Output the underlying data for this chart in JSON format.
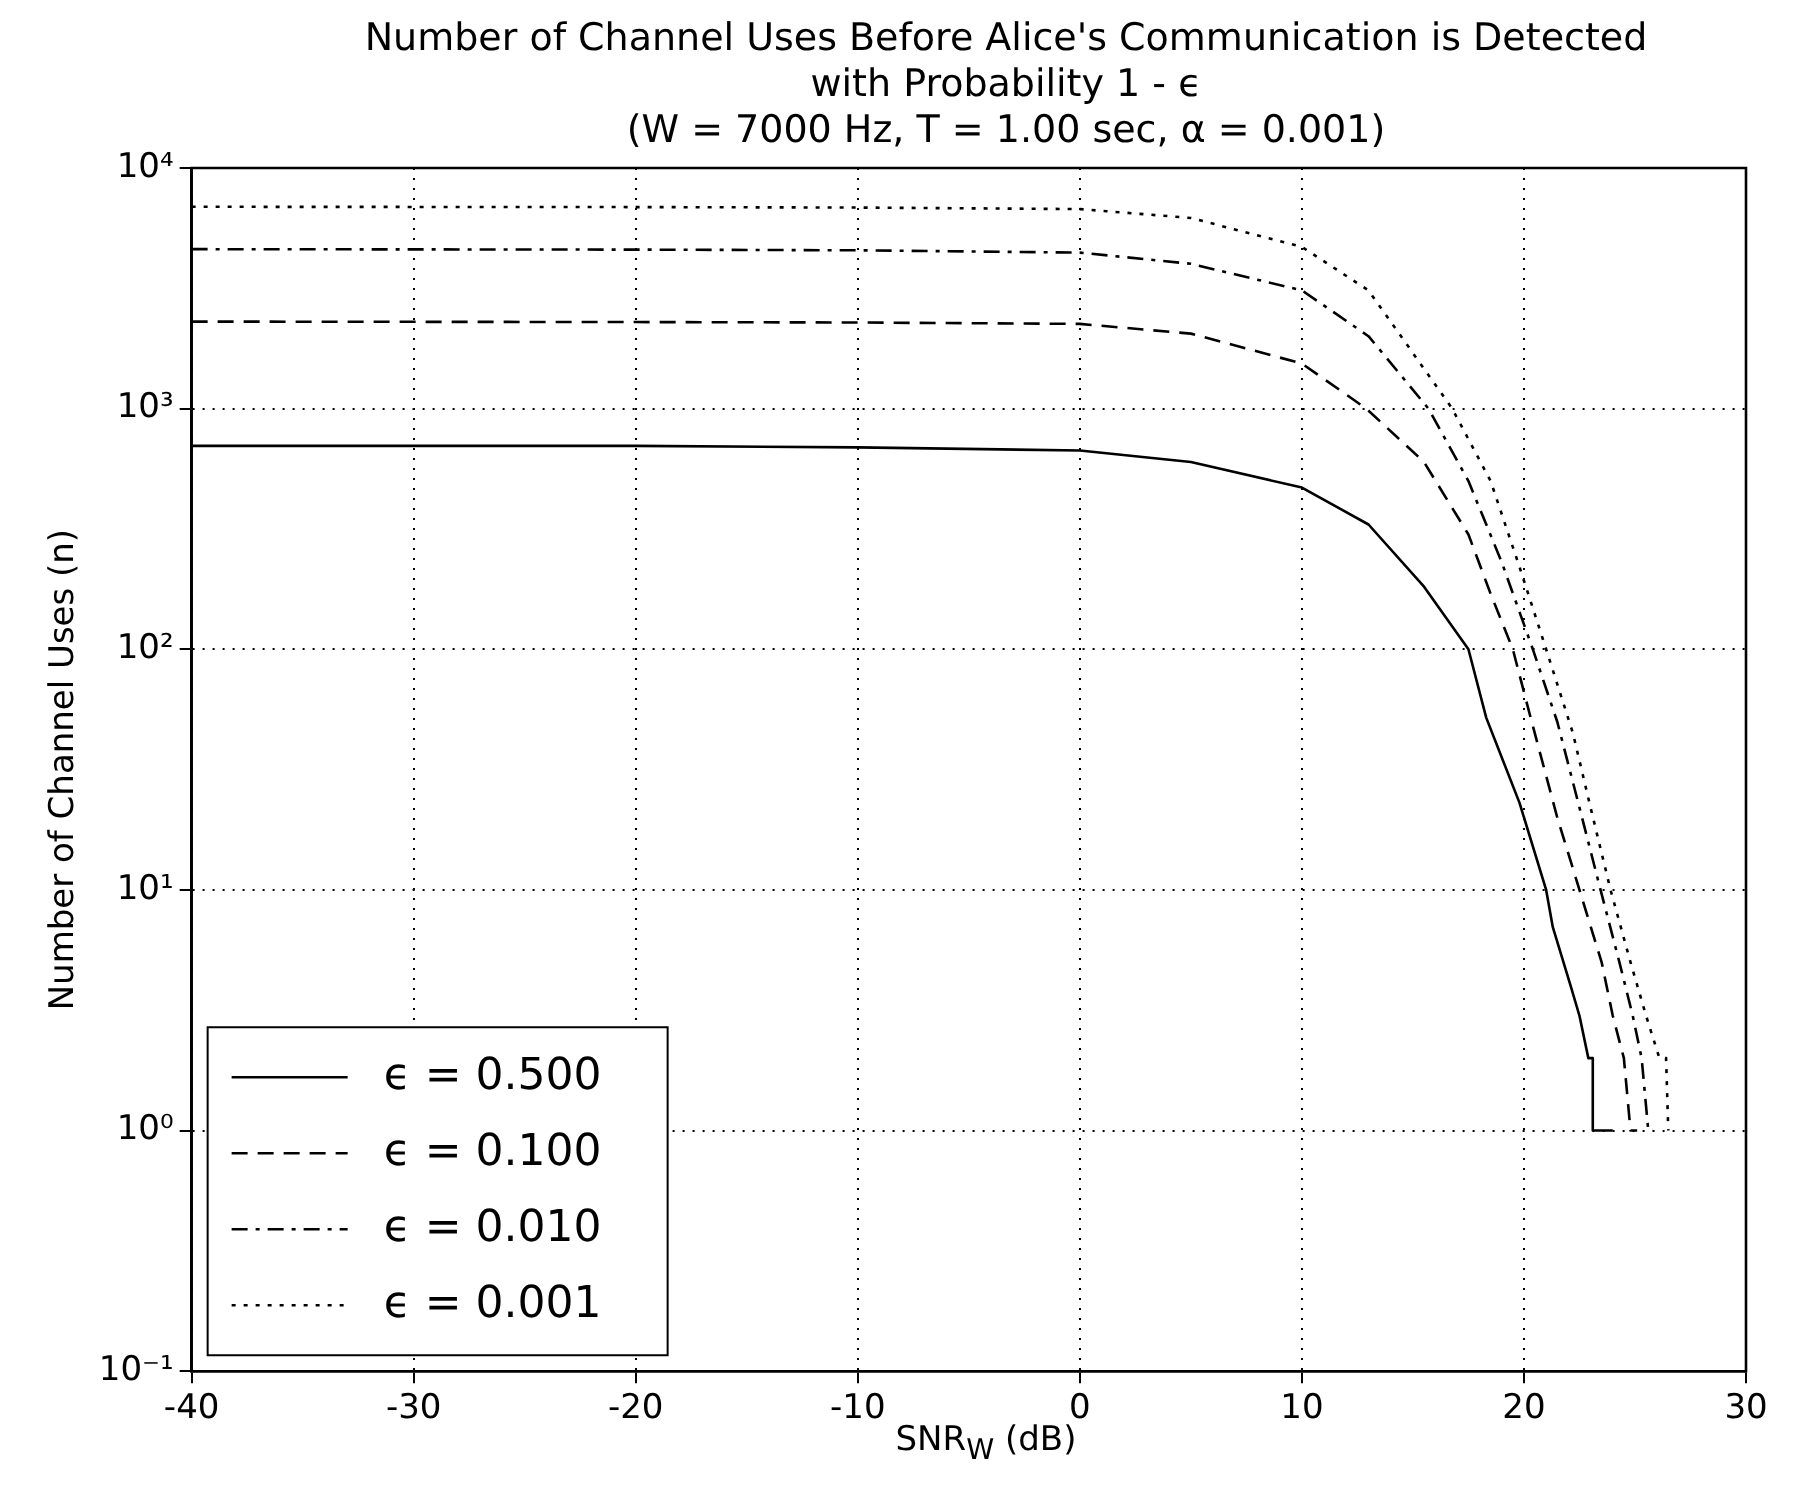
{
  "chart_data": {
    "type": "line",
    "title": "Number of Channel Uses Before Alice's Communication is Detected\nwith Probability 1 - ϵ\n(W = 7000 Hz, T = 1.00 sec, α = 0.001)",
    "xlabel": "SNR$_{W}$ (dB)",
    "ylabel": "Number of Channel Uses (n)",
    "xlim": [
      -40,
      30
    ],
    "xticks": [
      -40,
      -30,
      -20,
      -10,
      0,
      10,
      20,
      30
    ],
    "ylim": [
      0.1,
      10000
    ],
    "yticks": [
      {
        "value": 0.1,
        "label": "10⁻¹"
      },
      {
        "value": 1,
        "label": "10⁰"
      },
      {
        "value": 10,
        "label": "10¹"
      },
      {
        "value": 100,
        "label": "10²"
      },
      {
        "value": 1000,
        "label": "10³"
      },
      {
        "value": 10000,
        "label": "10⁴"
      }
    ],
    "log": "y",
    "grid": true,
    "legend": "bottom left",
    "series": [
      {
        "name": "ϵ = 0.500",
        "color": "#000000",
        "line_style": "solid",
        "x": [
          -40,
          -20,
          -10,
          0,
          5,
          10,
          13,
          15.5,
          17.5,
          18.3,
          19.8,
          21,
          21.3,
          22.1,
          22.5,
          22.9,
          23.1,
          23.1,
          24
        ],
        "values": [
          700,
          700,
          690,
          670,
          600,
          470,
          330,
          182,
          100,
          52,
          23,
          10,
          7,
          4,
          3,
          2,
          2,
          1,
          1
        ]
      },
      {
        "name": "ϵ = 0.100",
        "color": "#000000",
        "line_style": "dashed",
        "x": [
          -40,
          -20,
          -10,
          0,
          5,
          10,
          12.9,
          15.5,
          17.5,
          18.5,
          19.5,
          20.3,
          21.5,
          22.5,
          23.5,
          24,
          24.5,
          24.8,
          25.1
        ],
        "values": [
          2300,
          2290,
          2280,
          2250,
          2050,
          1540,
          1000,
          600,
          300,
          170,
          100,
          52,
          20,
          10,
          5,
          3,
          2,
          1,
          1
        ]
      },
      {
        "name": "ϵ = 0.010",
        "color": "#000000",
        "line_style": "dashdot",
        "x": [
          -40,
          -20,
          -10,
          0,
          5,
          10,
          13,
          15.7,
          17.5,
          19,
          20.4,
          21.5,
          22.5,
          23.45,
          24.3,
          24.9,
          25.3,
          25.6,
          25.8
        ],
        "values": [
          4600,
          4580,
          4550,
          4450,
          4000,
          3100,
          2000,
          1000,
          500,
          230,
          100,
          50,
          22,
          10,
          5,
          3,
          2,
          1,
          1
        ]
      },
      {
        "name": "ϵ = 0.001",
        "color": "#000000",
        "line_style": "dotted",
        "x": [
          -40,
          -20,
          -10,
          0,
          5,
          10,
          13,
          16.77,
          18.5,
          19.8,
          21,
          22.2,
          23,
          23.9,
          24.8,
          25.5,
          26.1,
          26.4,
          26.5
        ],
        "values": [
          6900,
          6880,
          6850,
          6750,
          6200,
          4700,
          3100,
          1000,
          500,
          220,
          100,
          45,
          22,
          10,
          5,
          3,
          2,
          2,
          1
        ]
      }
    ]
  }
}
